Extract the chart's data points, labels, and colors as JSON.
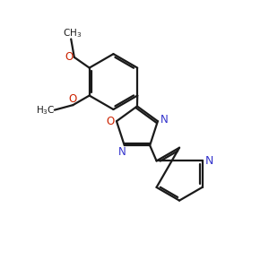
{
  "background": "#ffffff",
  "bond_color": "#1a1a1a",
  "N_color": "#3333cc",
  "O_color": "#cc2200",
  "text_color": "#1a1a1a",
  "bond_width": 1.6,
  "figsize": [
    3.0,
    3.0
  ],
  "dpi": 100,
  "xlim": [
    0,
    10
  ],
  "ylim": [
    0,
    10
  ]
}
